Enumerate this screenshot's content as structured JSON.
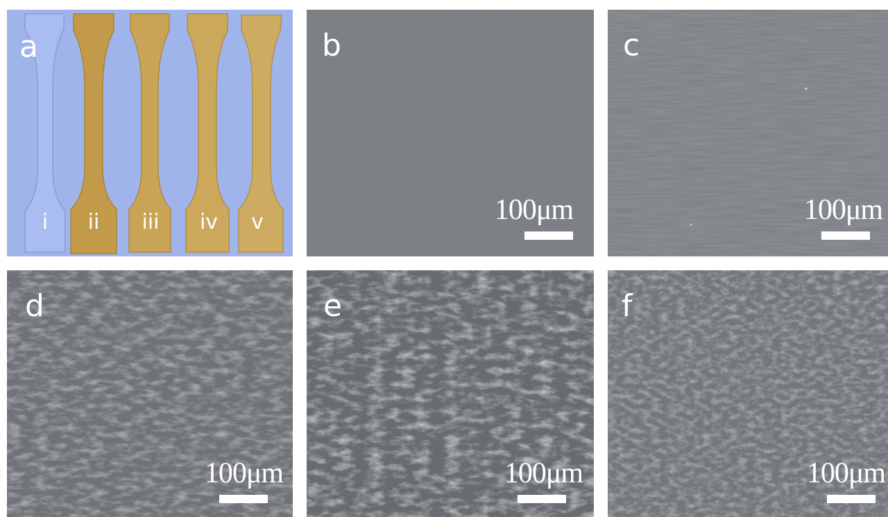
{
  "panels": [
    {
      "id": "a",
      "label": "a"
    },
    {
      "id": "b",
      "label": "b",
      "scale": "100μm"
    },
    {
      "id": "c",
      "label": "c",
      "scale": "100μm"
    },
    {
      "id": "d",
      "label": "d",
      "scale": "100μm"
    },
    {
      "id": "e",
      "label": "e",
      "scale": "100μm"
    },
    {
      "id": "f",
      "label": "f",
      "scale": "100μm"
    }
  ],
  "specimens": [
    "i",
    "ii",
    "iii",
    "iv",
    "v"
  ],
  "colors": {
    "photo_background": "#9fb4ea",
    "specimen_clear": "#a9bbf0",
    "specimen_amber": "#c7a04f",
    "sem_gray": "#777b80",
    "label_color": "#ffffff"
  }
}
